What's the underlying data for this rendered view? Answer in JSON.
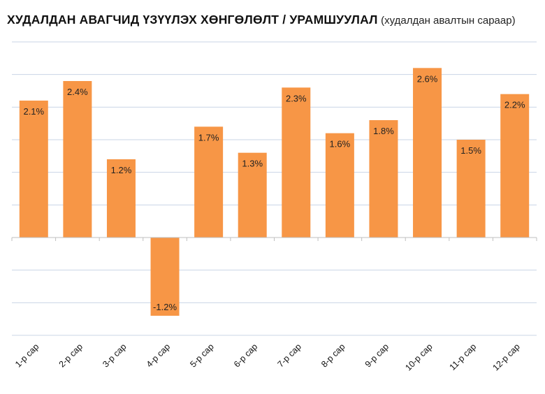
{
  "header": {
    "title": "ХУДАЛДАН АВАГЧИД ҮЗҮҮЛЭХ ХӨНГӨЛӨЛТ / УРАМШУУЛАЛ",
    "subtitle": "(худалдан авалтын сараар)"
  },
  "chart_data": {
    "type": "bar",
    "title": "ХУДАЛДАН АВАГЧИД ҮЗҮҮЛЭХ ХӨНГӨЛӨЛТ / УРАМШУУЛАЛ",
    "subtitle": "(худалдан авалтын сараар)",
    "categories": [
      "1-р сар",
      "2-р сар",
      "3-р сар",
      "4-р сар",
      "5-р сар",
      "6-р сар",
      "7-р сар",
      "8-р сар",
      "9-р сар",
      "10-р сар",
      "11-р сар",
      "12-р сар"
    ],
    "values": [
      2.1,
      2.4,
      1.2,
      -1.2,
      1.7,
      1.3,
      2.3,
      1.6,
      1.8,
      2.6,
      1.5,
      2.2
    ],
    "data_labels": [
      "2.1%",
      "2.4%",
      "1.2%",
      "-1.2%",
      "1.7%",
      "1.3%",
      "2.3%",
      "1.6%",
      "1.8%",
      "2.6%",
      "1.5%",
      "2.2%"
    ],
    "xlabel": "",
    "ylabel": "",
    "ylim": [
      -1.5,
      3.0
    ],
    "gridlines": [
      -1.5,
      -1.0,
      -0.5,
      0,
      0.5,
      1.0,
      1.5,
      2.0,
      2.5,
      3.0
    ],
    "y_tick_labels_shown": false,
    "grid": true,
    "legend": "none",
    "colors": {
      "bar": "#F79646",
      "grid": "#C9D4E6",
      "axis": "#BFBFBF"
    }
  }
}
